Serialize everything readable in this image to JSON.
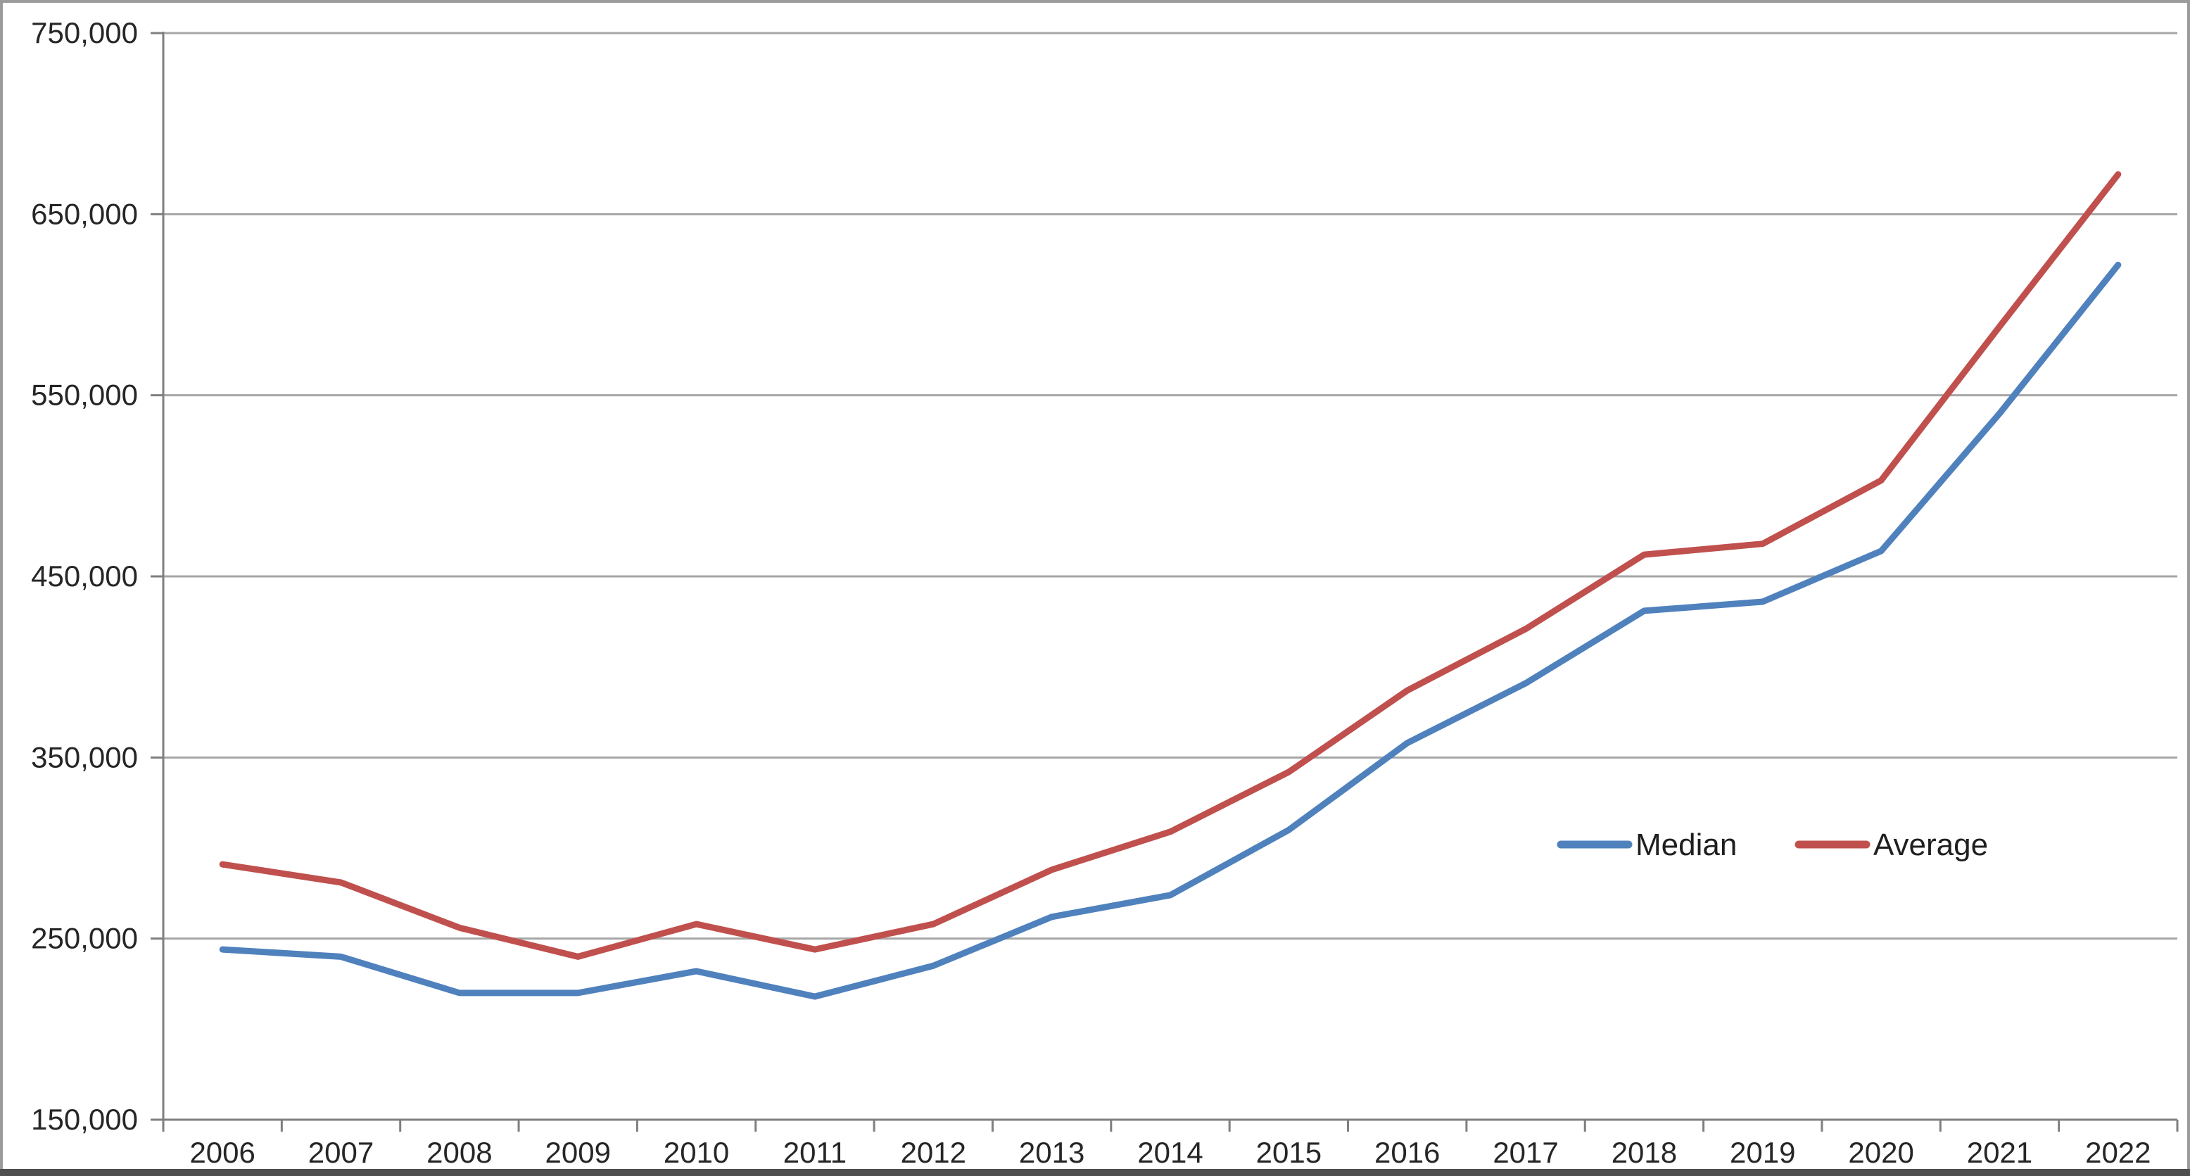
{
  "chart_data": {
    "type": "line",
    "title": "",
    "categories": [
      "2006",
      "2007",
      "2008",
      "2009",
      "2010",
      "2011",
      "2012",
      "2013",
      "2014",
      "2015",
      "2016",
      "2017",
      "2018",
      "2019",
      "2020",
      "2021",
      "2022"
    ],
    "series": [
      {
        "name": "Median",
        "color": "#4F81BD",
        "values": [
          244000,
          240000,
          220000,
          220000,
          232000,
          218000,
          235000,
          262000,
          274000,
          310000,
          358000,
          391000,
          431000,
          436000,
          464000,
          540000,
          622000
        ]
      },
      {
        "name": "Average",
        "color": "#C0504D",
        "values": [
          291000,
          281000,
          256000,
          240000,
          258000,
          244000,
          258000,
          288000,
          309000,
          342000,
          387000,
          421000,
          462000,
          468000,
          503000,
          588000,
          672000
        ]
      }
    ],
    "xlabel": "",
    "ylabel": "",
    "ylim": [
      150000,
      750000
    ],
    "y_tick_step": 100000,
    "y_tick_labels": [
      "150,000",
      "250,000",
      "350,000",
      "450,000",
      "550,000",
      "650,000",
      "750,000"
    ],
    "grid": "horizontal",
    "legend_position": "inside-center-right"
  },
  "colors": {
    "background": "#FFFFFF",
    "gridline": "#A6A6A6",
    "axis": "#7F7F7F",
    "tick_text": "#262626",
    "legend_text": "#1F1F1F",
    "frame_border": "#9B9B9B",
    "frame_bottom": "#4F4F4F"
  }
}
